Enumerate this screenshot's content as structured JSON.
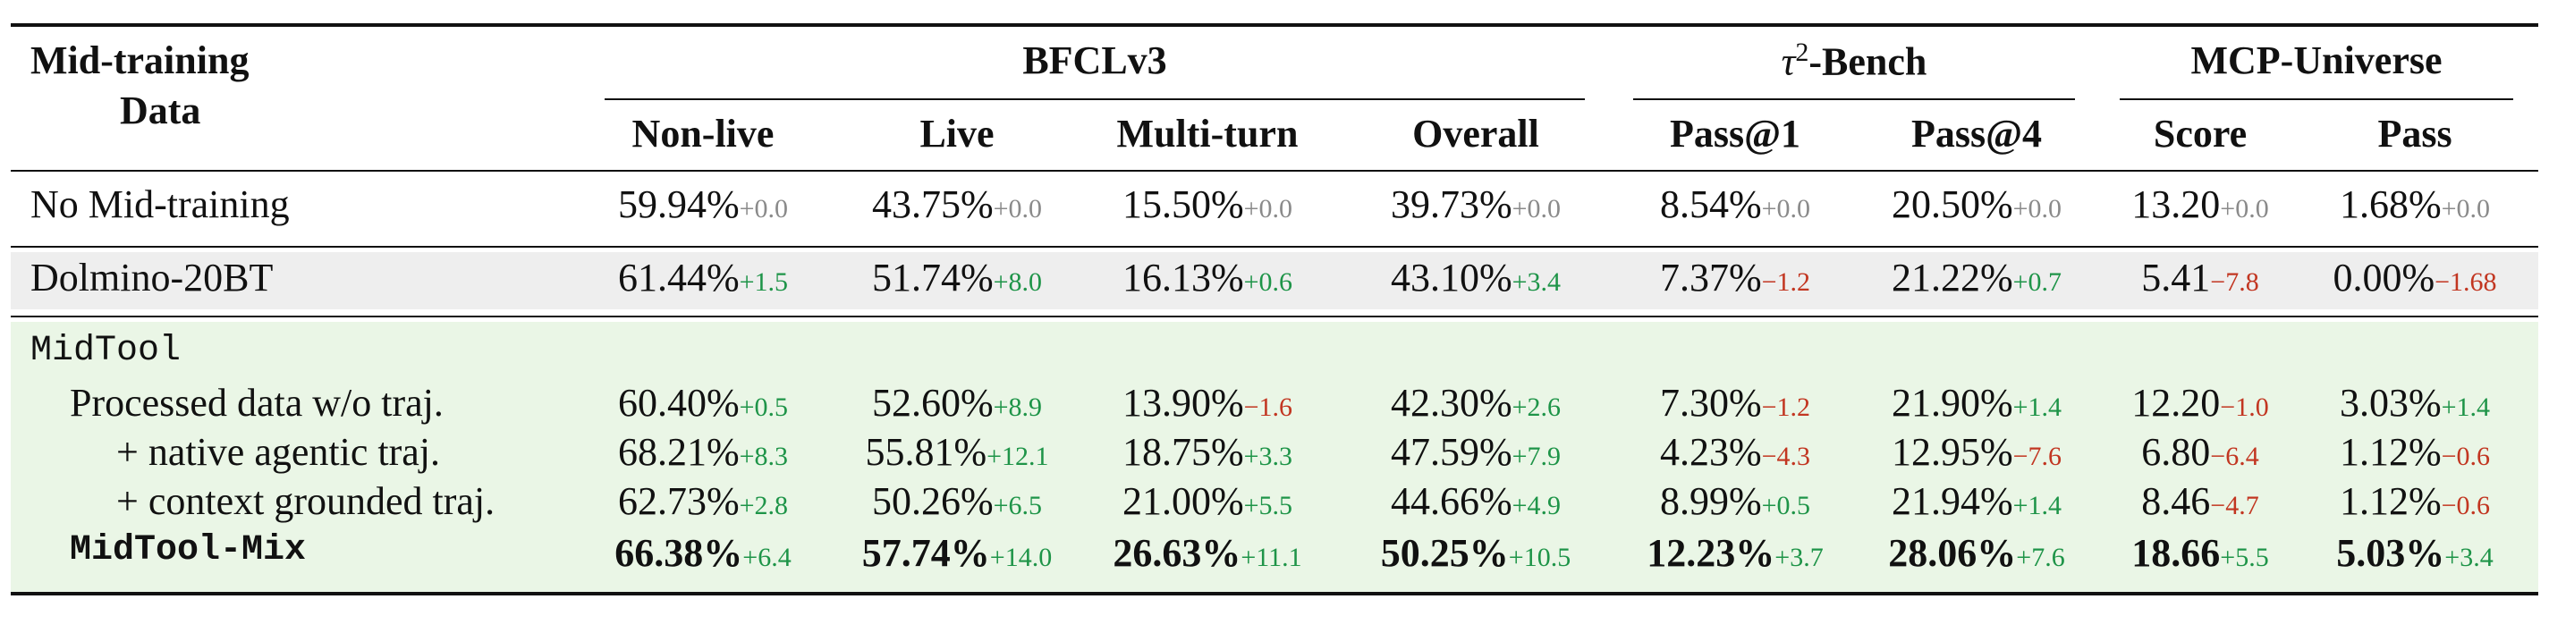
{
  "header": {
    "row_label_line1": "Mid-training",
    "row_label_line2": "Data",
    "groups": [
      {
        "label": "BFCLv3",
        "columns": [
          "Non-live",
          "Live",
          "Multi-turn",
          "Overall"
        ]
      },
      {
        "label_symbol": "τ",
        "label_sup": "2",
        "label_rest": "-Bench",
        "columns": [
          "Pass@1",
          "Pass@4"
        ]
      },
      {
        "label": "MCP-Universe",
        "columns": [
          "Score",
          "Pass"
        ]
      }
    ]
  },
  "rows": [
    {
      "label": "No Mid-training",
      "cells": [
        {
          "v": "59.94%",
          "d": "+0.0",
          "s": "zero"
        },
        {
          "v": "43.75%",
          "d": "+0.0",
          "s": "zero"
        },
        {
          "v": "15.50%",
          "d": "+0.0",
          "s": "zero"
        },
        {
          "v": "39.73%",
          "d": "+0.0",
          "s": "zero"
        },
        {
          "v": "8.54%",
          "d": "+0.0",
          "s": "zero"
        },
        {
          "v": "20.50%",
          "d": "+0.0",
          "s": "zero"
        },
        {
          "v": "13.20",
          "d": "+0.0",
          "s": "zero"
        },
        {
          "v": "1.68%",
          "d": "+0.0",
          "s": "zero"
        }
      ]
    },
    {
      "label": "Dolmino-20BT",
      "cells": [
        {
          "v": "61.44%",
          "d": "+1.5",
          "s": "pos"
        },
        {
          "v": "51.74%",
          "d": "+8.0",
          "s": "pos"
        },
        {
          "v": "16.13%",
          "d": "+0.6",
          "s": "pos"
        },
        {
          "v": "43.10%",
          "d": "+3.4",
          "s": "pos"
        },
        {
          "v": "7.37%",
          "d": "−1.2",
          "s": "neg"
        },
        {
          "v": "21.22%",
          "d": "+0.7",
          "s": "pos"
        },
        {
          "v": "5.41",
          "d": "−7.8",
          "s": "neg"
        },
        {
          "v": "0.00%",
          "d": "−1.68",
          "s": "neg"
        }
      ]
    },
    {
      "label": "MidTool",
      "cells": []
    },
    {
      "label": "Processed data w/o traj.",
      "cells": [
        {
          "v": "60.40%",
          "d": "+0.5",
          "s": "pos"
        },
        {
          "v": "52.60%",
          "d": "+8.9",
          "s": "pos"
        },
        {
          "v": "13.90%",
          "d": "−1.6",
          "s": "neg"
        },
        {
          "v": "42.30%",
          "d": "+2.6",
          "s": "pos"
        },
        {
          "v": "7.30%",
          "d": "−1.2",
          "s": "neg"
        },
        {
          "v": "21.90%",
          "d": "+1.4",
          "s": "pos"
        },
        {
          "v": "12.20",
          "d": "−1.0",
          "s": "neg"
        },
        {
          "v": "3.03%",
          "d": "+1.4",
          "s": "pos"
        }
      ]
    },
    {
      "label": "+ native agentic traj.",
      "cells": [
        {
          "v": "68.21%",
          "d": "+8.3",
          "s": "pos"
        },
        {
          "v": "55.81%",
          "d": "+12.1",
          "s": "pos"
        },
        {
          "v": "18.75%",
          "d": "+3.3",
          "s": "pos"
        },
        {
          "v": "47.59%",
          "d": "+7.9",
          "s": "pos"
        },
        {
          "v": "4.23%",
          "d": "−4.3",
          "s": "neg"
        },
        {
          "v": "12.95%",
          "d": "−7.6",
          "s": "neg"
        },
        {
          "v": "6.80",
          "d": "−6.4",
          "s": "neg"
        },
        {
          "v": "1.12%",
          "d": "−0.6",
          "s": "neg"
        }
      ]
    },
    {
      "label": "+ context grounded traj.",
      "cells": [
        {
          "v": "62.73%",
          "d": "+2.8",
          "s": "pos"
        },
        {
          "v": "50.26%",
          "d": "+6.5",
          "s": "pos"
        },
        {
          "v": "21.00%",
          "d": "+5.5",
          "s": "pos"
        },
        {
          "v": "44.66%",
          "d": "+4.9",
          "s": "pos"
        },
        {
          "v": "8.99%",
          "d": "+0.5",
          "s": "pos"
        },
        {
          "v": "21.94%",
          "d": "+1.4",
          "s": "pos"
        },
        {
          "v": "8.46",
          "d": "−4.7",
          "s": "neg"
        },
        {
          "v": "1.12%",
          "d": "−0.6",
          "s": "neg"
        }
      ]
    },
    {
      "label": "MidTool-Mix",
      "cells": [
        {
          "v": "66.38%",
          "d": "+6.4",
          "s": "pos"
        },
        {
          "v": "57.74%",
          "d": "+14.0",
          "s": "pos"
        },
        {
          "v": "26.63%",
          "d": "+11.1",
          "s": "pos"
        },
        {
          "v": "50.25%",
          "d": "+10.5",
          "s": "pos"
        },
        {
          "v": "12.23%",
          "d": "+3.7",
          "s": "pos"
        },
        {
          "v": "28.06%",
          "d": "+7.6",
          "s": "pos"
        },
        {
          "v": "18.66",
          "d": "+5.5",
          "s": "pos"
        },
        {
          "v": "5.03%",
          "d": "+3.4",
          "s": "pos"
        }
      ]
    }
  ],
  "colors": {
    "positive": "#1e9448",
    "negative": "#c23621",
    "neutral": "#8a8a8a",
    "highlight_gray": "#eeeeee",
    "highlight_green": "#eaf6e6"
  }
}
